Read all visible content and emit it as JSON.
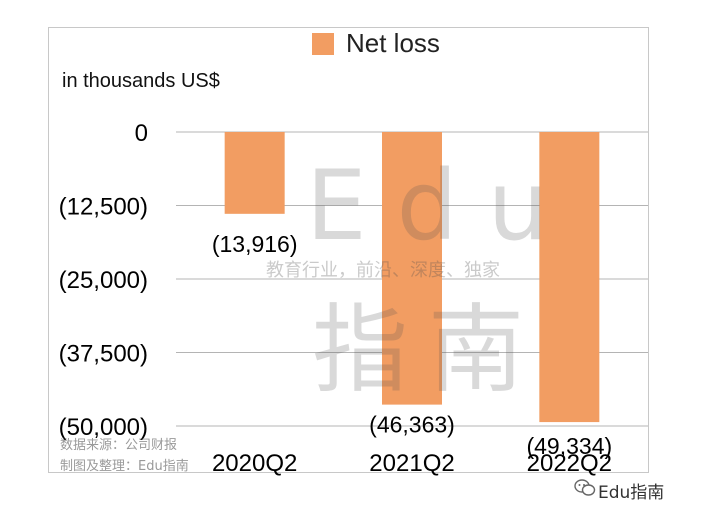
{
  "chart_data": {
    "type": "bar",
    "categories": [
      "2020Q2",
      "2021Q2",
      "2022Q2"
    ],
    "series": [
      {
        "name": "Net loss",
        "values": [
          -13916,
          -46363,
          -49334
        ],
        "color": "#f29d62"
      }
    ],
    "data_labels": [
      "(13,916)",
      "(46,363)",
      "(49,334)"
    ],
    "ylabel": "in thousands US$",
    "ylim": [
      -50000,
      0
    ],
    "yticks": [
      0,
      -12500,
      -25000,
      -37500,
      -50000
    ],
    "ytick_labels": [
      "0",
      "(12,500)",
      "(25,000)",
      "(37,500)",
      "(50,000)"
    ],
    "grid": true,
    "legend": "top-center"
  },
  "watermark": {
    "line1": "Edu",
    "tagline": "教育行业，前沿、深度、独家",
    "line2": "指南"
  },
  "credits": {
    "source": "数据来源：公司财报",
    "made_by": "制图及整理：Edu指南"
  },
  "brand": "Edu指南"
}
